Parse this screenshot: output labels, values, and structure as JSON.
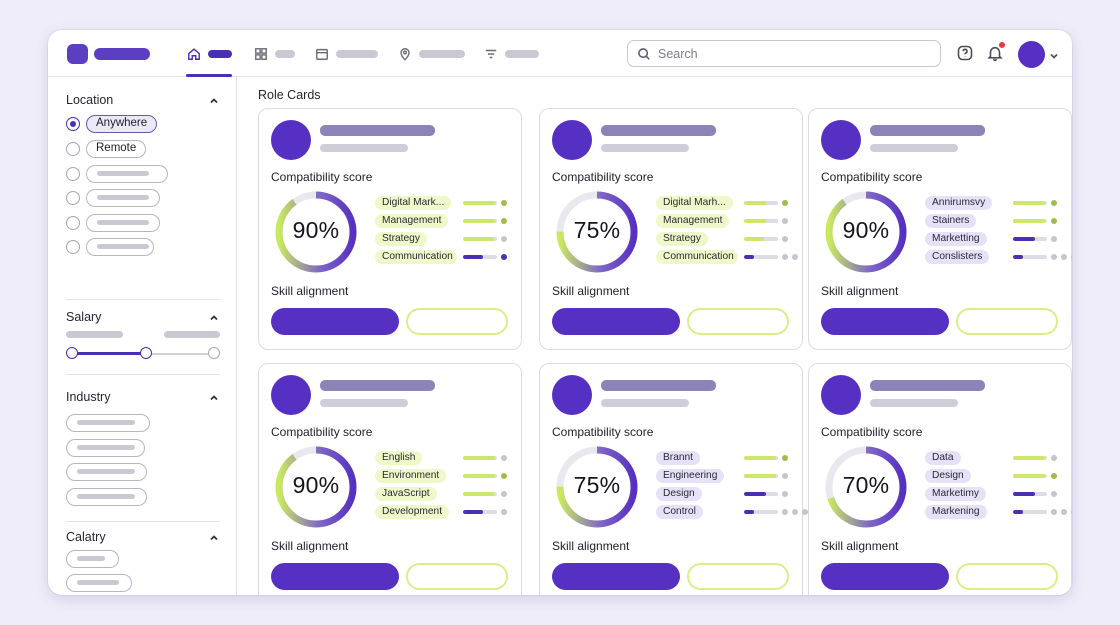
{
  "search": {
    "placeholder": "Search"
  },
  "main": {
    "title": "Role Cards"
  },
  "sidebar": {
    "sections": [
      "Location",
      "Salary",
      "Industry",
      "Calatry"
    ],
    "location_options": [
      "Anywhere",
      "Remote"
    ],
    "selected_location": "Anywhere"
  },
  "colors": {
    "accent": "#5630c2",
    "lime": "#cbe86a",
    "alert": "#e53a3a"
  },
  "icons": [
    "home-icon",
    "grid-icon",
    "calendar-icon",
    "location-pin-icon",
    "filter-icon",
    "search-icon",
    "help-icon",
    "bell-icon",
    "chevron-down-icon",
    "chevron-up-icon"
  ],
  "labels": {
    "compat": "Compatibility score",
    "skill": "Skill alignment"
  },
  "cards": [
    {
      "pct": "90%",
      "score": 0.9,
      "skills": [
        {
          "label": "Digital Mark...",
          "tag": "g",
          "level": 0.95,
          "color": "g",
          "dots": [
            "on-g"
          ]
        },
        {
          "label": "Management",
          "tag": "g",
          "level": 0.95,
          "color": "g",
          "dots": [
            "on-g"
          ]
        },
        {
          "label": "Strategy",
          "tag": "g",
          "level": 0.9,
          "color": "g",
          "dots": [
            "off"
          ]
        },
        {
          "label": "Communication",
          "tag": "g",
          "level": 0.6,
          "color": "p",
          "dots": [
            "on-p"
          ]
        }
      ]
    },
    {
      "pct": "75%",
      "score": 0.75,
      "skills": [
        {
          "label": "Digital Marh...",
          "tag": "g",
          "level": 0.65,
          "color": "g",
          "dots": [
            "on-g"
          ]
        },
        {
          "label": "Management",
          "tag": "g",
          "level": 0.65,
          "color": "g",
          "dots": [
            "off"
          ]
        },
        {
          "label": "Strategy",
          "tag": "g",
          "level": 0.6,
          "color": "g",
          "dots": [
            "off"
          ]
        },
        {
          "label": "Communication",
          "tag": "g",
          "level": 0.3,
          "color": "p",
          "dots": [
            "off",
            "off"
          ]
        }
      ]
    },
    {
      "pct": "90%",
      "score": 0.9,
      "skills": [
        {
          "label": "Annirumsvy",
          "tag": "p",
          "level": 0.95,
          "color": "g",
          "dots": [
            "on-g"
          ]
        },
        {
          "label": "Stainers",
          "tag": "p",
          "level": 0.95,
          "color": "g",
          "dots": [
            "on-g"
          ]
        },
        {
          "label": "Marketting",
          "tag": "p",
          "level": 0.65,
          "color": "p",
          "dots": [
            "off"
          ]
        },
        {
          "label": "Conslisters",
          "tag": "p",
          "level": 0.3,
          "color": "p",
          "dots": [
            "off",
            "off",
            "off"
          ]
        }
      ]
    },
    {
      "pct": "90%",
      "score": 0.9,
      "skills": [
        {
          "label": "English",
          "tag": "g",
          "level": 0.95,
          "color": "g",
          "dots": [
            "off"
          ]
        },
        {
          "label": "Environment",
          "tag": "g",
          "level": 0.95,
          "color": "g",
          "dots": [
            "on-g"
          ]
        },
        {
          "label": "JavaScript",
          "tag": "g",
          "level": 0.9,
          "color": "g",
          "dots": [
            "off"
          ]
        },
        {
          "label": "Development",
          "tag": "g",
          "level": 0.6,
          "color": "p",
          "dots": [
            "off"
          ]
        }
      ]
    },
    {
      "pct": "75%",
      "score": 0.75,
      "skills": [
        {
          "label": "Brannt",
          "tag": "p",
          "level": 0.95,
          "color": "g",
          "dots": [
            "on-g"
          ]
        },
        {
          "label": "Engineering",
          "tag": "p",
          "level": 0.95,
          "color": "g",
          "dots": [
            "off"
          ]
        },
        {
          "label": "Design",
          "tag": "p",
          "level": 0.65,
          "color": "p",
          "dots": [
            "off"
          ]
        },
        {
          "label": "Control",
          "tag": "p",
          "level": 0.3,
          "color": "p",
          "dots": [
            "off",
            "off",
            "off"
          ]
        }
      ]
    },
    {
      "pct": "70%",
      "score": 0.7,
      "skills": [
        {
          "label": "Data",
          "tag": "p",
          "level": 0.95,
          "color": "g",
          "dots": [
            "off"
          ]
        },
        {
          "label": "Design",
          "tag": "p",
          "level": 0.95,
          "color": "g",
          "dots": [
            "on-g"
          ]
        },
        {
          "label": "Marketimy",
          "tag": "p",
          "level": 0.65,
          "color": "p",
          "dots": [
            "off"
          ]
        },
        {
          "label": "Markening",
          "tag": "p",
          "level": 0.3,
          "color": "p",
          "dots": [
            "off",
            "off",
            "off"
          ]
        }
      ]
    }
  ]
}
